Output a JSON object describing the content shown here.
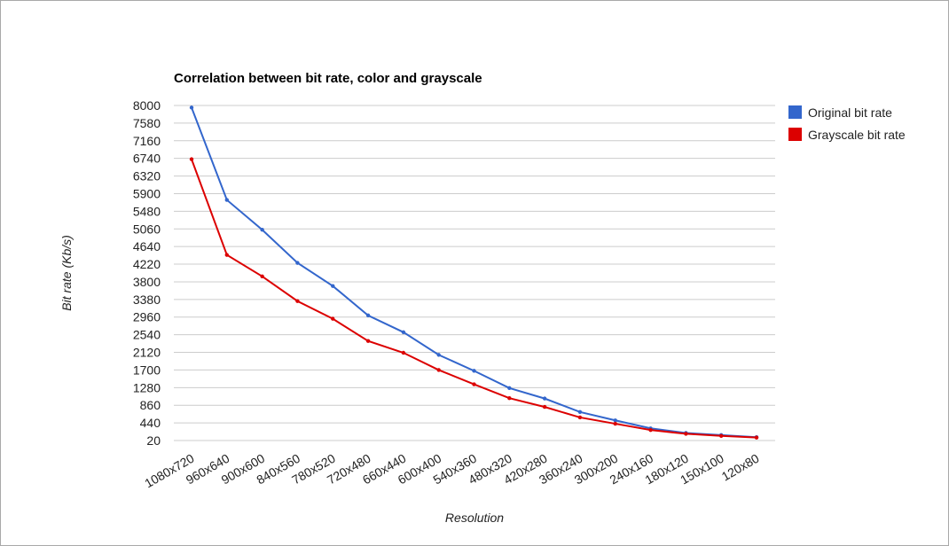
{
  "chart_data": {
    "type": "line",
    "title": "Correlation between bit rate, color and grayscale",
    "xlabel": "Resolution",
    "ylabel": "Bit rate (Kb/s)",
    "ylim": [
      20,
      8000
    ],
    "yticks": [
      8000,
      7580,
      7160,
      6740,
      6320,
      5900,
      5480,
      5060,
      4640,
      4220,
      3800,
      3380,
      2960,
      2540,
      2120,
      1700,
      1280,
      860,
      440,
      20
    ],
    "grid": true,
    "legend_position": "right",
    "categories": [
      "1080x720",
      "960x640",
      "900x600",
      "840x560",
      "780x520",
      "720x480",
      "660x440",
      "600x400",
      "540x360",
      "480x320",
      "420x280",
      "360x240",
      "300x200",
      "240x160",
      "180x120",
      "150x100",
      "120x80"
    ],
    "series": [
      {
        "name": "Original bit rate",
        "color": "#3366cc",
        "values": [
          7950,
          5750,
          5040,
          4250,
          3700,
          3000,
          2600,
          2060,
          1680,
          1270,
          1020,
          700,
          500,
          310,
          200,
          150,
          100
        ]
      },
      {
        "name": "Grayscale bit rate",
        "color": "#dc0000",
        "values": [
          6720,
          4440,
          3930,
          3340,
          2920,
          2390,
          2110,
          1700,
          1360,
          1030,
          820,
          570,
          420,
          270,
          180,
          130,
          90
        ]
      }
    ]
  }
}
